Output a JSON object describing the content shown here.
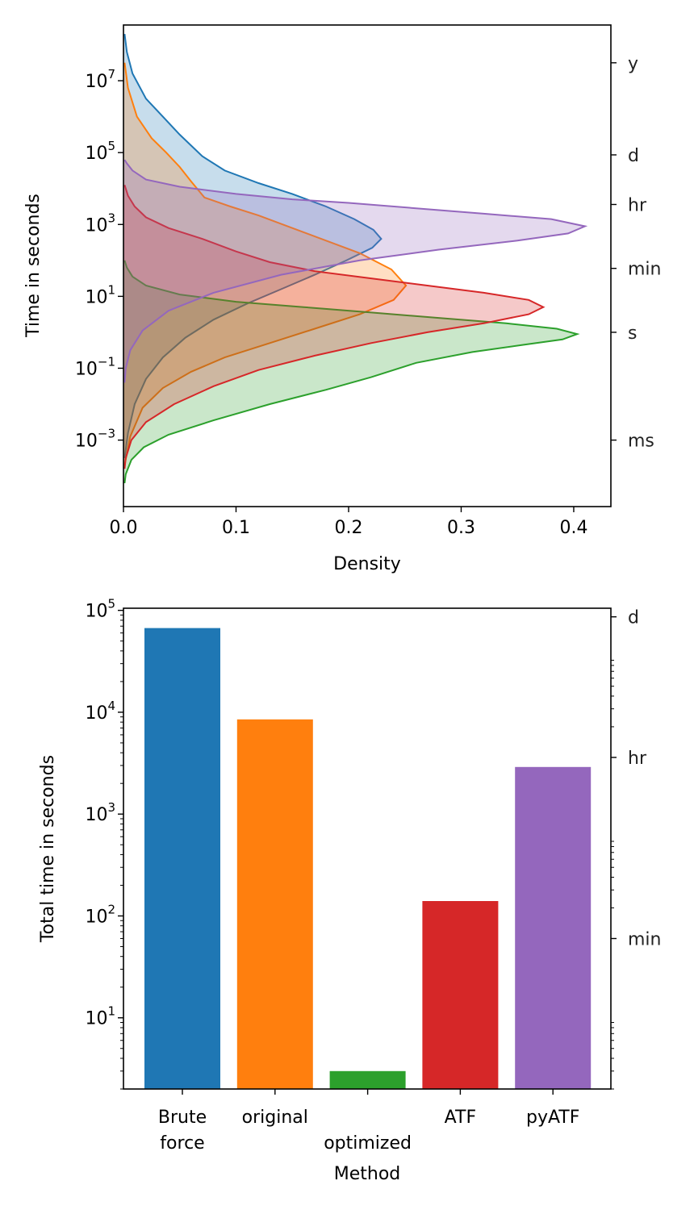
{
  "chart_data": [
    {
      "type": "area",
      "title": "",
      "xlabel": "Density",
      "ylabel": "Time in seconds",
      "yscale": "log",
      "xlim": [
        0.0,
        0.433
      ],
      "ylim_exp": [
        -4.85,
        8.55
      ],
      "x_ticks": [
        "0.0",
        "0.1",
        "0.2",
        "0.3",
        "0.4"
      ],
      "y_ticks": [
        {
          "base": "10",
          "exp": "7"
        },
        {
          "base": "10",
          "exp": "5"
        },
        {
          "base": "10",
          "exp": "3"
        },
        {
          "base": "10",
          "exp": "1"
        },
        {
          "base": "10",
          "exp": "−1"
        },
        {
          "base": "10",
          "exp": "−3"
        }
      ],
      "secondary_y_ticks": [
        "y",
        "d",
        "hr",
        "min",
        "s",
        "ms"
      ],
      "secondary_y_values": [
        31536000,
        86400,
        3600,
        60,
        1,
        0.001
      ],
      "grid": false,
      "legend": "none",
      "series": [
        {
          "color": "#1f77b4",
          "points": [
            [
              0.001,
              8.3
            ],
            [
              0.003,
              7.8
            ],
            [
              0.008,
              7.2
            ],
            [
              0.02,
              6.5
            ],
            [
              0.035,
              6.0
            ],
            [
              0.05,
              5.5
            ],
            [
              0.07,
              4.9
            ],
            [
              0.09,
              4.5
            ],
            [
              0.12,
              4.15
            ],
            [
              0.15,
              3.85
            ],
            [
              0.18,
              3.5
            ],
            [
              0.205,
              3.15
            ],
            [
              0.222,
              2.85
            ],
            [
              0.229,
              2.6
            ],
            [
              0.221,
              2.35
            ],
            [
              0.198,
              2.0
            ],
            [
              0.17,
              1.6
            ],
            [
              0.14,
              1.2
            ],
            [
              0.11,
              0.8
            ],
            [
              0.08,
              0.35
            ],
            [
              0.055,
              -0.15
            ],
            [
              0.035,
              -0.7
            ],
            [
              0.02,
              -1.3
            ],
            [
              0.01,
              -2.0
            ],
            [
              0.004,
              -2.8
            ],
            [
              0.001,
              -3.5
            ]
          ]
        },
        {
          "color": "#ff7f0e",
          "points": [
            [
              0.001,
              7.5
            ],
            [
              0.004,
              6.8
            ],
            [
              0.012,
              6.0
            ],
            [
              0.025,
              5.4
            ],
            [
              0.038,
              5.0
            ],
            [
              0.05,
              4.6
            ],
            [
              0.06,
              4.2
            ],
            [
              0.072,
              3.75
            ],
            [
              0.095,
              3.5
            ],
            [
              0.12,
              3.25
            ],
            [
              0.15,
              2.9
            ],
            [
              0.18,
              2.55
            ],
            [
              0.21,
              2.2
            ],
            [
              0.238,
              1.75
            ],
            [
              0.251,
              1.3
            ],
            [
              0.24,
              0.9
            ],
            [
              0.21,
              0.5
            ],
            [
              0.17,
              0.1
            ],
            [
              0.13,
              -0.3
            ],
            [
              0.09,
              -0.7
            ],
            [
              0.06,
              -1.1
            ],
            [
              0.035,
              -1.55
            ],
            [
              0.017,
              -2.1
            ],
            [
              0.006,
              -2.9
            ],
            [
              0.001,
              -3.7
            ]
          ]
        },
        {
          "color": "#2ca02c",
          "points": [
            [
              0.001,
              2.0
            ],
            [
              0.003,
              1.8
            ],
            [
              0.008,
              1.55
            ],
            [
              0.02,
              1.3
            ],
            [
              0.05,
              1.05
            ],
            [
              0.1,
              0.85
            ],
            [
              0.16,
              0.7
            ],
            [
              0.22,
              0.55
            ],
            [
              0.28,
              0.4
            ],
            [
              0.34,
              0.25
            ],
            [
              0.385,
              0.1
            ],
            [
              0.403,
              -0.05
            ],
            [
              0.39,
              -0.2
            ],
            [
              0.355,
              -0.35
            ],
            [
              0.31,
              -0.55
            ],
            [
              0.26,
              -0.85
            ],
            [
              0.22,
              -1.25
            ],
            [
              0.18,
              -1.6
            ],
            [
              0.13,
              -2.0
            ],
            [
              0.08,
              -2.45
            ],
            [
              0.04,
              -2.85
            ],
            [
              0.018,
              -3.2
            ],
            [
              0.007,
              -3.55
            ],
            [
              0.002,
              -3.95
            ],
            [
              0.001,
              -4.2
            ]
          ]
        },
        {
          "color": "#d62728",
          "points": [
            [
              0.001,
              4.1
            ],
            [
              0.004,
              3.8
            ],
            [
              0.01,
              3.5
            ],
            [
              0.02,
              3.2
            ],
            [
              0.04,
              2.9
            ],
            [
              0.07,
              2.6
            ],
            [
              0.1,
              2.25
            ],
            [
              0.13,
              1.95
            ],
            [
              0.17,
              1.7
            ],
            [
              0.22,
              1.5
            ],
            [
              0.27,
              1.3
            ],
            [
              0.32,
              1.1
            ],
            [
              0.36,
              0.9
            ],
            [
              0.373,
              0.7
            ],
            [
              0.36,
              0.5
            ],
            [
              0.32,
              0.25
            ],
            [
              0.27,
              0.0
            ],
            [
              0.22,
              -0.3
            ],
            [
              0.17,
              -0.65
            ],
            [
              0.12,
              -1.05
            ],
            [
              0.08,
              -1.5
            ],
            [
              0.045,
              -2.0
            ],
            [
              0.02,
              -2.5
            ],
            [
              0.007,
              -3.0
            ],
            [
              0.002,
              -3.5
            ],
            [
              0.001,
              -3.8
            ]
          ]
        },
        {
          "color": "#9467bd",
          "points": [
            [
              0.001,
              4.8
            ],
            [
              0.003,
              4.7
            ],
            [
              0.008,
              4.5
            ],
            [
              0.02,
              4.25
            ],
            [
              0.05,
              4.05
            ],
            [
              0.1,
              3.85
            ],
            [
              0.15,
              3.7
            ],
            [
              0.2,
              3.6
            ],
            [
              0.26,
              3.45
            ],
            [
              0.32,
              3.3
            ],
            [
              0.38,
              3.15
            ],
            [
              0.41,
              2.95
            ],
            [
              0.395,
              2.75
            ],
            [
              0.35,
              2.55
            ],
            [
              0.28,
              2.3
            ],
            [
              0.21,
              2.0
            ],
            [
              0.14,
              1.6
            ],
            [
              0.08,
              1.1
            ],
            [
              0.04,
              0.6
            ],
            [
              0.017,
              0.05
            ],
            [
              0.006,
              -0.5
            ],
            [
              0.002,
              -1.0
            ],
            [
              0.001,
              -1.4
            ]
          ]
        }
      ]
    },
    {
      "type": "bar",
      "title": "",
      "xlabel": "Method",
      "ylabel": "Total time in seconds",
      "yscale": "log",
      "ylim_exp": [
        0.301,
        5.021
      ],
      "categories": [
        "Brute\nforce",
        "original",
        "optimized",
        "ATF",
        "pyATF"
      ],
      "category_lines": [
        [
          "Brute",
          "force"
        ],
        [
          "original"
        ],
        [
          "",
          "optimized"
        ],
        [
          "ATF"
        ],
        [
          "pyATF"
        ]
      ],
      "values": [
        67000,
        8500,
        3.0,
        140,
        2900
      ],
      "colors": [
        "#1f77b4",
        "#ff7f0e",
        "#2ca02c",
        "#d62728",
        "#9467bd"
      ],
      "y_ticks": [
        {
          "base": "10",
          "exp": "5"
        },
        {
          "base": "10",
          "exp": "4"
        },
        {
          "base": "10",
          "exp": "3"
        },
        {
          "base": "10",
          "exp": "2"
        },
        {
          "base": "10",
          "exp": "1"
        }
      ],
      "secondary_y_ticks": [
        "d",
        "hr",
        "min"
      ],
      "secondary_y_values": [
        86400,
        3600,
        60
      ],
      "grid": false,
      "legend": "none"
    }
  ]
}
